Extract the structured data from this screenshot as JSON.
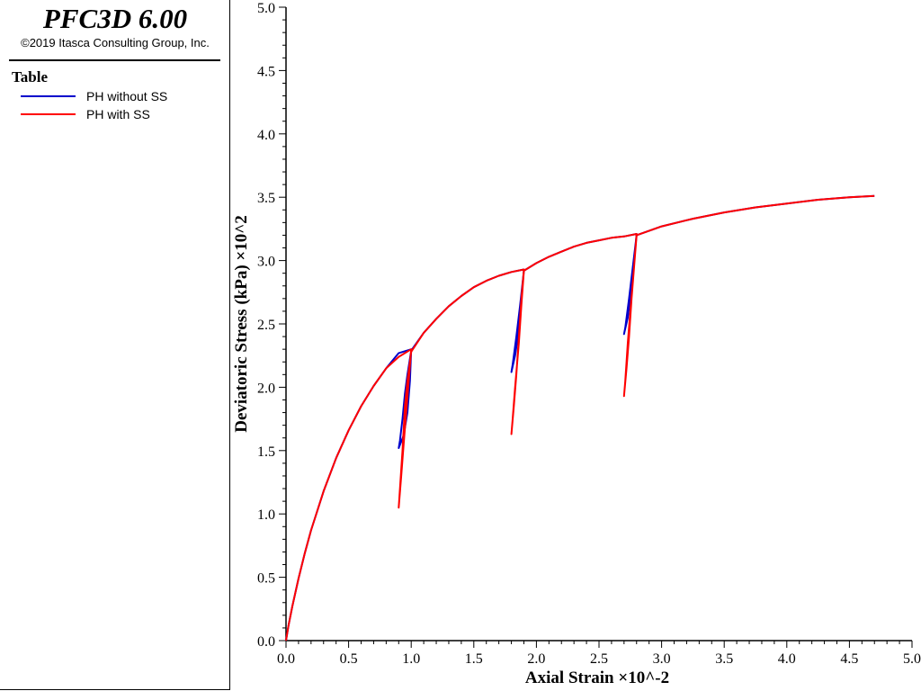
{
  "header": {
    "app_title": "PFC3D 6.00",
    "copyright": "©2019 Itasca Consulting Group, Inc."
  },
  "legend": {
    "title": "Table",
    "items": [
      {
        "label": "PH without SS",
        "color": "#0000cc"
      },
      {
        "label": "PH with SS",
        "color": "#ff0000"
      }
    ]
  },
  "chart_data": {
    "type": "line",
    "xlabel": "Axial Strain ×10^-2",
    "ylabel": "Deviatoric Stress (kPa) ×10^2",
    "xlim": [
      0,
      5
    ],
    "ylim": [
      0,
      5
    ],
    "x_ticks": [
      "0.0",
      "0.5",
      "1.0",
      "1.5",
      "2.0",
      "2.5",
      "3.0",
      "3.5",
      "4.0",
      "4.5",
      "5.0"
    ],
    "y_ticks": [
      "0.0",
      "0.5",
      "1.0",
      "1.5",
      "2.0",
      "2.5",
      "3.0",
      "3.5",
      "4.0",
      "4.5",
      "5.0"
    ],
    "grid": false,
    "legend_position": "left panel",
    "series": [
      {
        "name": "PH without SS",
        "color": "#0000cc",
        "points": [
          [
            0,
            0
          ],
          [
            0.02,
            0.12
          ],
          [
            0.05,
            0.27
          ],
          [
            0.1,
            0.49
          ],
          [
            0.15,
            0.69
          ],
          [
            0.2,
            0.87
          ],
          [
            0.3,
            1.18
          ],
          [
            0.4,
            1.44
          ],
          [
            0.5,
            1.66
          ],
          [
            0.6,
            1.85
          ],
          [
            0.7,
            2.01
          ],
          [
            0.8,
            2.15
          ],
          [
            0.9,
            2.27
          ],
          [
            1.0,
            2.3
          ],
          [
            0.99,
            2.05
          ],
          [
            0.97,
            1.8
          ],
          [
            0.94,
            1.62
          ],
          [
            0.9,
            1.52
          ],
          [
            0.91,
            1.58
          ],
          [
            0.93,
            1.75
          ],
          [
            0.95,
            1.95
          ],
          [
            0.97,
            2.1
          ],
          [
            1.0,
            2.29
          ],
          [
            1.1,
            2.43
          ],
          [
            1.2,
            2.54
          ],
          [
            1.3,
            2.64
          ],
          [
            1.4,
            2.72
          ],
          [
            1.5,
            2.79
          ],
          [
            1.6,
            2.84
          ],
          [
            1.7,
            2.88
          ],
          [
            1.8,
            2.91
          ],
          [
            1.9,
            2.93
          ],
          [
            1.88,
            2.7
          ],
          [
            1.86,
            2.45
          ],
          [
            1.83,
            2.25
          ],
          [
            1.8,
            2.12
          ],
          [
            1.81,
            2.18
          ],
          [
            1.84,
            2.4
          ],
          [
            1.87,
            2.65
          ],
          [
            1.9,
            2.92
          ],
          [
            2.0,
            2.98
          ],
          [
            2.1,
            3.03
          ],
          [
            2.2,
            3.07
          ],
          [
            2.3,
            3.11
          ],
          [
            2.4,
            3.14
          ],
          [
            2.5,
            3.16
          ],
          [
            2.6,
            3.18
          ],
          [
            2.7,
            3.19
          ],
          [
            2.8,
            3.21
          ],
          [
            2.78,
            3.0
          ],
          [
            2.76,
            2.8
          ],
          [
            2.73,
            2.55
          ],
          [
            2.7,
            2.42
          ],
          [
            2.71,
            2.47
          ],
          [
            2.74,
            2.7
          ],
          [
            2.77,
            2.95
          ],
          [
            2.8,
            3.2
          ],
          [
            3.0,
            3.27
          ],
          [
            3.25,
            3.33
          ],
          [
            3.5,
            3.38
          ],
          [
            3.75,
            3.42
          ],
          [
            4.0,
            3.45
          ],
          [
            4.25,
            3.48
          ],
          [
            4.5,
            3.5
          ],
          [
            4.7,
            3.51
          ]
        ]
      },
      {
        "name": "PH with SS",
        "color": "#ff0000",
        "points": [
          [
            0,
            0
          ],
          [
            0.02,
            0.12
          ],
          [
            0.05,
            0.27
          ],
          [
            0.1,
            0.49
          ],
          [
            0.15,
            0.69
          ],
          [
            0.2,
            0.87
          ],
          [
            0.3,
            1.18
          ],
          [
            0.4,
            1.44
          ],
          [
            0.5,
            1.66
          ],
          [
            0.6,
            1.85
          ],
          [
            0.7,
            2.01
          ],
          [
            0.8,
            2.15
          ],
          [
            0.9,
            2.24
          ],
          [
            1.0,
            2.3
          ],
          [
            0.98,
            2.05
          ],
          [
            0.96,
            1.8
          ],
          [
            0.94,
            1.55
          ],
          [
            0.92,
            1.3
          ],
          [
            0.9,
            1.05
          ],
          [
            0.91,
            1.2
          ],
          [
            0.93,
            1.5
          ],
          [
            0.95,
            1.85
          ],
          [
            0.97,
            2.05
          ],
          [
            1.0,
            2.28
          ],
          [
            1.1,
            2.43
          ],
          [
            1.2,
            2.54
          ],
          [
            1.3,
            2.64
          ],
          [
            1.4,
            2.72
          ],
          [
            1.5,
            2.79
          ],
          [
            1.6,
            2.84
          ],
          [
            1.7,
            2.88
          ],
          [
            1.8,
            2.91
          ],
          [
            1.9,
            2.93
          ],
          [
            1.88,
            2.7
          ],
          [
            1.86,
            2.4
          ],
          [
            1.84,
            2.1
          ],
          [
            1.82,
            1.85
          ],
          [
            1.8,
            1.63
          ],
          [
            1.81,
            1.75
          ],
          [
            1.83,
            2.0
          ],
          [
            1.86,
            2.35
          ],
          [
            1.88,
            2.65
          ],
          [
            1.9,
            2.92
          ],
          [
            2.0,
            2.98
          ],
          [
            2.1,
            3.03
          ],
          [
            2.2,
            3.07
          ],
          [
            2.3,
            3.11
          ],
          [
            2.4,
            3.14
          ],
          [
            2.5,
            3.16
          ],
          [
            2.6,
            3.18
          ],
          [
            2.7,
            3.19
          ],
          [
            2.8,
            3.21
          ],
          [
            2.78,
            2.95
          ],
          [
            2.76,
            2.7
          ],
          [
            2.74,
            2.4
          ],
          [
            2.72,
            2.15
          ],
          [
            2.7,
            1.93
          ],
          [
            2.71,
            2.05
          ],
          [
            2.73,
            2.35
          ],
          [
            2.75,
            2.6
          ],
          [
            2.78,
            2.95
          ],
          [
            2.8,
            3.2
          ],
          [
            3.0,
            3.27
          ],
          [
            3.25,
            3.33
          ],
          [
            3.5,
            3.38
          ],
          [
            3.75,
            3.42
          ],
          [
            4.0,
            3.45
          ],
          [
            4.25,
            3.48
          ],
          [
            4.5,
            3.5
          ],
          [
            4.7,
            3.51
          ]
        ]
      }
    ]
  }
}
